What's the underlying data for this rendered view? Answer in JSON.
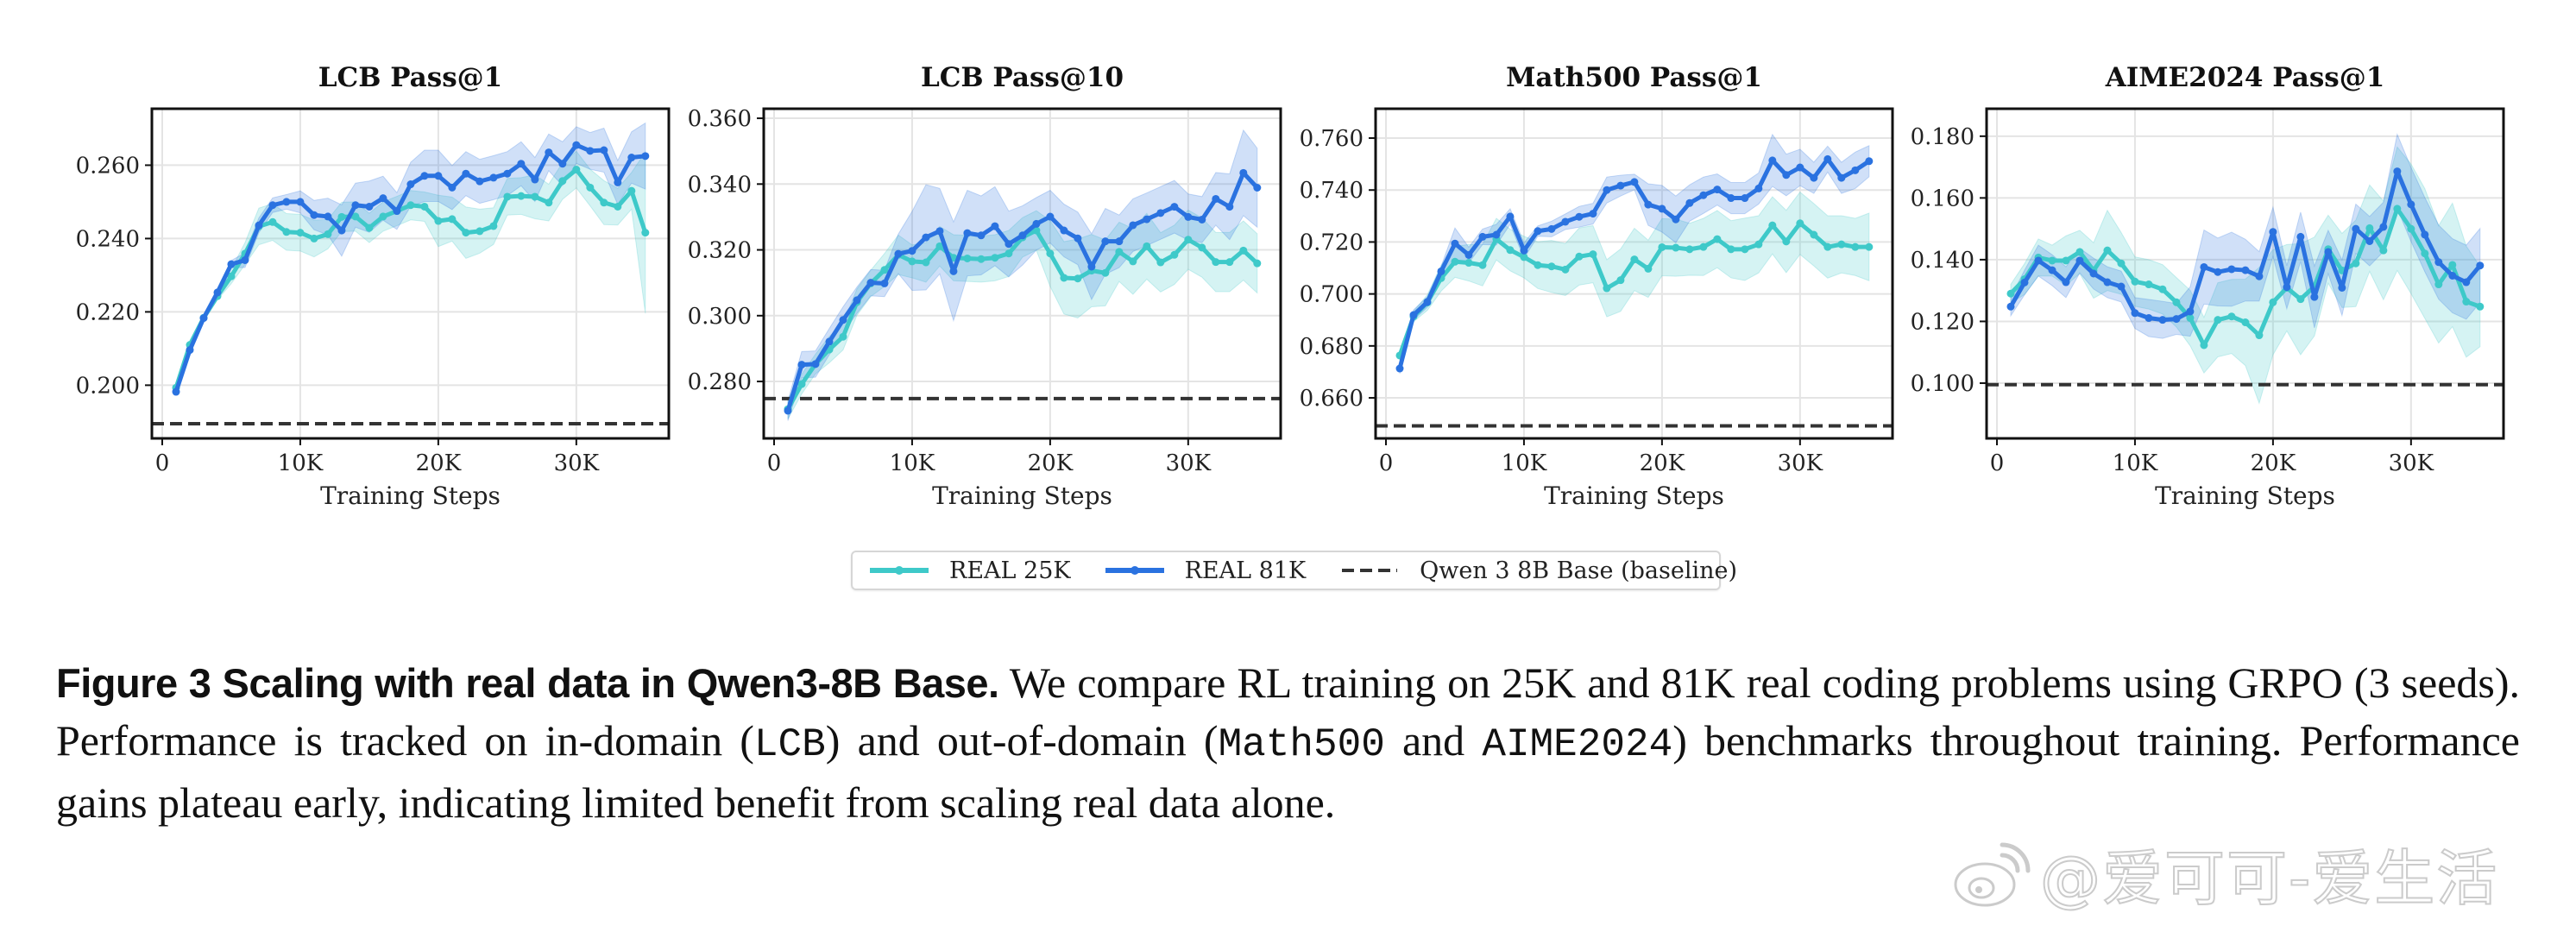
{
  "chart_data": [
    {
      "type": "line",
      "title": "LCB Pass@1",
      "xlabel": "Training Steps",
      "ylabel": "",
      "x": [
        1000,
        2000,
        3000,
        4000,
        5000,
        6000,
        7000,
        8000,
        9000,
        10000,
        11000,
        12000,
        13000,
        14000,
        15000,
        16000,
        17000,
        18000,
        19000,
        20000,
        21000,
        22000,
        23000,
        24000,
        25000,
        26000,
        27000,
        28000,
        29000,
        30000,
        31000,
        32000,
        33000,
        34000,
        35000
      ],
      "xticks": [
        0,
        10000,
        20000,
        30000
      ],
      "xtick_labels": [
        "0",
        "10K",
        "20K",
        "30K"
      ],
      "xlim": [
        -750,
        36700
      ],
      "yticks": [
        0.2,
        0.22,
        0.24,
        0.26
      ],
      "ytick_labels": [
        "0.200",
        "0.220",
        "0.240",
        "0.260"
      ],
      "ylim": [
        0.1855,
        0.2754
      ],
      "grid": true,
      "baseline": 0.1895,
      "series": [
        {
          "name": "REAL 25K",
          "color": "#3ec9c9",
          "values": [
            0.1993,
            0.211,
            0.2184,
            0.2243,
            0.2297,
            0.2359,
            0.2433,
            0.2445,
            0.2418,
            0.2416,
            0.24,
            0.2412,
            0.2459,
            0.246,
            0.2429,
            0.246,
            0.2475,
            0.2491,
            0.2487,
            0.2448,
            0.2453,
            0.2416,
            0.242,
            0.2434,
            0.2514,
            0.2516,
            0.2514,
            0.2498,
            0.2557,
            0.2588,
            0.2539,
            0.2498,
            0.2487,
            0.253,
            0.2416
          ],
          "err": [
            0.001,
            0.001,
            0.001,
            0.001,
            0.002,
            0.003,
            0.005,
            0.005,
            0.005,
            0.005,
            0.005,
            0.004,
            0.004,
            0.004,
            0.004,
            0.004,
            0.004,
            0.004,
            0.004,
            0.007,
            0.006,
            0.007,
            0.006,
            0.005,
            0.005,
            0.005,
            0.006,
            0.005,
            0.005,
            0.005,
            0.005,
            0.006,
            0.005,
            0.005,
            0.022
          ]
        },
        {
          "name": "REAL 81K",
          "color": "#2a72e0",
          "values": [
            0.1982,
            0.2096,
            0.2183,
            0.2253,
            0.233,
            0.2341,
            0.2436,
            0.2491,
            0.25,
            0.25,
            0.2464,
            0.246,
            0.2422,
            0.2491,
            0.2487,
            0.251,
            0.2475,
            0.2548,
            0.2571,
            0.2571,
            0.2539,
            0.2577,
            0.2556,
            0.2566,
            0.2577,
            0.2604,
            0.2561,
            0.2635,
            0.2604,
            0.2655,
            0.2639,
            0.2641,
            0.2553,
            0.2621,
            0.2625
          ],
          "err": [
            0.001,
            0.001,
            0.001,
            0.001,
            0.001,
            0.002,
            0.002,
            0.002,
            0.002,
            0.003,
            0.004,
            0.005,
            0.007,
            0.006,
            0.007,
            0.006,
            0.005,
            0.006,
            0.007,
            0.007,
            0.006,
            0.006,
            0.006,
            0.006,
            0.006,
            0.006,
            0.006,
            0.005,
            0.006,
            0.005,
            0.005,
            0.006,
            0.006,
            0.007,
            0.009
          ]
        }
      ]
    },
    {
      "type": "line",
      "title": "LCB Pass@10",
      "xlabel": "Training Steps",
      "ylabel": "",
      "x": [
        1000,
        2000,
        3000,
        4000,
        5000,
        6000,
        7000,
        8000,
        9000,
        10000,
        11000,
        12000,
        13000,
        14000,
        15000,
        16000,
        17000,
        18000,
        19000,
        20000,
        21000,
        22000,
        23000,
        24000,
        25000,
        26000,
        27000,
        28000,
        29000,
        30000,
        31000,
        32000,
        33000,
        34000,
        35000
      ],
      "xticks": [
        0,
        10000,
        20000,
        30000
      ],
      "xtick_labels": [
        "0",
        "10K",
        "20K",
        "30K"
      ],
      "xlim": [
        -750,
        36700
      ],
      "yticks": [
        0.28,
        0.3,
        0.32,
        0.34,
        0.36
      ],
      "ytick_labels": [
        "0.280",
        "0.300",
        "0.320",
        "0.340",
        "0.360"
      ],
      "ylim": [
        0.2627,
        0.3629
      ],
      "grid": true,
      "baseline": 0.2748,
      "series": [
        {
          "name": "REAL 25K",
          "color": "#3ec9c9",
          "values": [
            0.2716,
            0.2792,
            0.2853,
            0.2897,
            0.2936,
            0.3041,
            0.3098,
            0.3139,
            0.3185,
            0.3165,
            0.3162,
            0.3211,
            0.3176,
            0.3174,
            0.3172,
            0.3176,
            0.3189,
            0.3238,
            0.3259,
            0.3189,
            0.3115,
            0.3113,
            0.3137,
            0.313,
            0.3194,
            0.3165,
            0.3211,
            0.3162,
            0.3185,
            0.3231,
            0.3207,
            0.3163,
            0.3163,
            0.3198,
            0.3159
          ],
          "err": [
            0.003,
            0.003,
            0.003,
            0.004,
            0.004,
            0.004,
            0.004,
            0.005,
            0.006,
            0.005,
            0.006,
            0.006,
            0.007,
            0.007,
            0.007,
            0.007,
            0.007,
            0.006,
            0.006,
            0.01,
            0.011,
            0.012,
            0.011,
            0.01,
            0.009,
            0.01,
            0.01,
            0.009,
            0.009,
            0.009,
            0.009,
            0.009,
            0.009,
            0.009,
            0.009
          ]
        },
        {
          "name": "REAL 81K",
          "color": "#2a72e0",
          "values": [
            0.2711,
            0.2851,
            0.2853,
            0.2921,
            0.2987,
            0.3047,
            0.31,
            0.3098,
            0.3188,
            0.3197,
            0.3238,
            0.3257,
            0.3135,
            0.3251,
            0.3244,
            0.3272,
            0.3218,
            0.3244,
            0.3279,
            0.3301,
            0.3259,
            0.3235,
            0.3149,
            0.3226,
            0.3226,
            0.3275,
            0.3293,
            0.3312,
            0.3331,
            0.33,
            0.3292,
            0.3355,
            0.3331,
            0.3434,
            0.3389
          ],
          "err": [
            0.003,
            0.004,
            0.004,
            0.004,
            0.004,
            0.004,
            0.004,
            0.004,
            0.006,
            0.012,
            0.016,
            0.013,
            0.015,
            0.013,
            0.012,
            0.012,
            0.01,
            0.009,
            0.008,
            0.008,
            0.008,
            0.008,
            0.01,
            0.01,
            0.008,
            0.008,
            0.008,
            0.008,
            0.008,
            0.007,
            0.007,
            0.008,
            0.01,
            0.013,
            0.012
          ]
        }
      ]
    },
    {
      "type": "line",
      "title": "Math500 Pass@1",
      "xlabel": "Training Steps",
      "ylabel": "",
      "x": [
        1000,
        2000,
        3000,
        4000,
        5000,
        6000,
        7000,
        8000,
        9000,
        10000,
        11000,
        12000,
        13000,
        14000,
        15000,
        16000,
        17000,
        18000,
        19000,
        20000,
        21000,
        22000,
        23000,
        24000,
        25000,
        26000,
        27000,
        28000,
        29000,
        30000,
        31000,
        32000,
        33000,
        34000,
        35000
      ],
      "xticks": [
        0,
        10000,
        20000,
        30000
      ],
      "xtick_labels": [
        "0",
        "10K",
        "20K",
        "30K"
      ],
      "xlim": [
        -750,
        36700
      ],
      "yticks": [
        0.66,
        0.68,
        0.7,
        0.72,
        0.74,
        0.76
      ],
      "ytick_labels": [
        "0.660",
        "0.680",
        "0.700",
        "0.720",
        "0.740",
        "0.760"
      ],
      "ylim": [
        0.6444,
        0.7713
      ],
      "grid": true,
      "baseline": 0.6492,
      "series": [
        {
          "name": "REAL 25K",
          "color": "#3ec9c9",
          "values": [
            0.6763,
            0.6913,
            0.6967,
            0.7061,
            0.7124,
            0.712,
            0.7111,
            0.7211,
            0.7169,
            0.7142,
            0.7111,
            0.7106,
            0.7094,
            0.7144,
            0.7153,
            0.7022,
            0.7053,
            0.7133,
            0.7097,
            0.718,
            0.7178,
            0.7172,
            0.7181,
            0.7211,
            0.7172,
            0.7172,
            0.7191,
            0.7264,
            0.7202,
            0.7272,
            0.7228,
            0.7181,
            0.7191,
            0.7181,
            0.7181
          ],
          "err": [
            0.002,
            0.002,
            0.003,
            0.005,
            0.006,
            0.007,
            0.008,
            0.008,
            0.008,
            0.008,
            0.009,
            0.01,
            0.01,
            0.011,
            0.011,
            0.011,
            0.012,
            0.012,
            0.011,
            0.011,
            0.011,
            0.01,
            0.011,
            0.011,
            0.011,
            0.012,
            0.011,
            0.011,
            0.012,
            0.012,
            0.012,
            0.012,
            0.011,
            0.011,
            0.013
          ]
        },
        {
          "name": "REAL 81K",
          "color": "#2a72e0",
          "values": [
            0.6713,
            0.6919,
            0.6969,
            0.7087,
            0.7194,
            0.715,
            0.722,
            0.7228,
            0.7298,
            0.7167,
            0.7242,
            0.725,
            0.7278,
            0.7297,
            0.7309,
            0.74,
            0.7417,
            0.7431,
            0.7344,
            0.7328,
            0.7287,
            0.735,
            0.738,
            0.7402,
            0.7369,
            0.7369,
            0.7406,
            0.7514,
            0.7458,
            0.7487,
            0.7447,
            0.7519,
            0.7447,
            0.7476,
            0.7511
          ],
          "err": [
            0.002,
            0.002,
            0.002,
            0.002,
            0.006,
            0.003,
            0.003,
            0.004,
            0.003,
            0.003,
            0.002,
            0.003,
            0.003,
            0.004,
            0.004,
            0.005,
            0.004,
            0.003,
            0.008,
            0.009,
            0.009,
            0.007,
            0.007,
            0.006,
            0.006,
            0.006,
            0.006,
            0.01,
            0.008,
            0.007,
            0.006,
            0.005,
            0.006,
            0.007,
            0.006
          ]
        }
      ]
    },
    {
      "type": "line",
      "title": "AIME2024 Pass@1",
      "xlabel": "Training Steps",
      "ylabel": "",
      "x": [
        1000,
        2000,
        3000,
        4000,
        5000,
        6000,
        7000,
        8000,
        9000,
        10000,
        11000,
        12000,
        13000,
        14000,
        15000,
        16000,
        17000,
        18000,
        19000,
        20000,
        21000,
        22000,
        23000,
        24000,
        25000,
        26000,
        27000,
        28000,
        29000,
        30000,
        31000,
        32000,
        33000,
        34000,
        35000
      ],
      "xticks": [
        0,
        10000,
        20000,
        30000
      ],
      "xtick_labels": [
        "0",
        "10K",
        "20K",
        "30K"
      ],
      "xlim": [
        -750,
        36700
      ],
      "yticks": [
        0.1,
        0.12,
        0.14,
        0.16,
        0.18
      ],
      "ytick_labels": [
        "0.100",
        "0.120",
        "0.140",
        "0.160",
        "0.180"
      ],
      "ylim": [
        0.0821,
        0.1889
      ],
      "grid": true,
      "baseline": 0.0995,
      "series": [
        {
          "name": "REAL 25K",
          "color": "#3ec9c9",
          "values": [
            0.129,
            0.1337,
            0.1407,
            0.1397,
            0.1397,
            0.1425,
            0.1365,
            0.143,
            0.1388,
            0.1329,
            0.132,
            0.1304,
            0.1262,
            0.1211,
            0.1123,
            0.1205,
            0.1216,
            0.1197,
            0.1155,
            0.1262,
            0.1309,
            0.1272,
            0.1313,
            0.1434,
            0.1365,
            0.1388,
            0.1502,
            0.143,
            0.1565,
            0.15,
            0.142,
            0.132,
            0.1383,
            0.1264,
            0.1248
          ],
          "err": [
            0.003,
            0.005,
            0.006,
            0.005,
            0.008,
            0.007,
            0.009,
            0.013,
            0.01,
            0.008,
            0.008,
            0.008,
            0.008,
            0.009,
            0.009,
            0.012,
            0.012,
            0.014,
            0.022,
            0.017,
            0.014,
            0.018,
            0.016,
            0.011,
            0.012,
            0.014,
            0.014,
            0.016,
            0.02,
            0.021,
            0.021,
            0.019,
            0.02,
            0.018,
            0.013
          ]
        },
        {
          "name": "REAL 81K",
          "color": "#2a72e0",
          "values": [
            0.1248,
            0.1326,
            0.1397,
            0.1366,
            0.1327,
            0.1397,
            0.1355,
            0.1327,
            0.1313,
            0.1227,
            0.1211,
            0.1205,
            0.1208,
            0.1232,
            0.1376,
            0.136,
            0.1369,
            0.1366,
            0.1346,
            0.149,
            0.1311,
            0.1474,
            0.1279,
            0.1425,
            0.1309,
            0.15,
            0.146,
            0.1506,
            0.1686,
            0.1579,
            0.1481,
            0.1392,
            0.1348,
            0.1327,
            0.1381
          ],
          "err": [
            0.003,
            0.004,
            0.005,
            0.005,
            0.005,
            0.004,
            0.005,
            0.005,
            0.005,
            0.005,
            0.006,
            0.006,
            0.005,
            0.008,
            0.012,
            0.011,
            0.012,
            0.01,
            0.008,
            0.008,
            0.007,
            0.008,
            0.01,
            0.007,
            0.009,
            0.008,
            0.008,
            0.008,
            0.012,
            0.012,
            0.012,
            0.012,
            0.012,
            0.012,
            0.012
          ]
        }
      ]
    }
  ],
  "legend": {
    "items": [
      {
        "label": "REAL 25K",
        "style": "line-marker",
        "color": "#3ec9c9"
      },
      {
        "label": "REAL 81K",
        "style": "line-marker",
        "color": "#2a72e0"
      },
      {
        "label": "Qwen 3 8B Base (baseline)",
        "style": "dashed",
        "color": "#333333"
      }
    ],
    "placement": "bottom-center"
  },
  "caption": {
    "lead": "Figure 3  Scaling with real data in Qwen3-8B Base.",
    "part1": " We compare RL training on 25K and 81K real coding problems using GRPO (3 seeds).  Performance is tracked on in-domain (",
    "code1": "LCB",
    "part2": ") and out-of-domain (",
    "code2": "Math500",
    "part3": " and ",
    "code3": "AIME2024",
    "part4": ") benchmarks throughout training. Performance gains plateau early, indicating limited benefit from scaling real data alone."
  },
  "watermark": {
    "text": "@爱可可-爱生活",
    "icon": "weibo-icon"
  }
}
